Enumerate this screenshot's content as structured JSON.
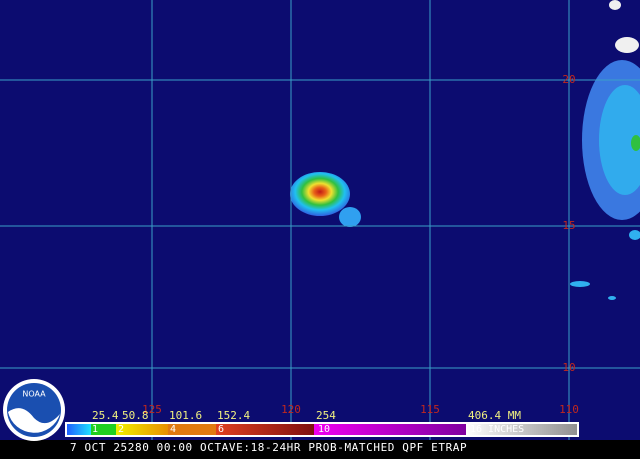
{
  "map": {
    "latitude_labels": [
      "20",
      "15",
      "10"
    ],
    "longitude_labels": [
      "125",
      "120",
      "115",
      "110"
    ]
  },
  "legend": {
    "mm_labels": [
      "25.4",
      "50.8",
      "101.6",
      "152.4",
      "254",
      "406.4 MM"
    ],
    "inch_labels": [
      "1",
      "2",
      "4",
      "6",
      "10",
      "16 INCHES"
    ]
  },
  "footer": {
    "caption": "7 OCT 25280 00:00 OCTAVE:18-24HR PROB-MATCHED QPF ETRAP"
  },
  "logo": {
    "text": "NOAA"
  }
}
